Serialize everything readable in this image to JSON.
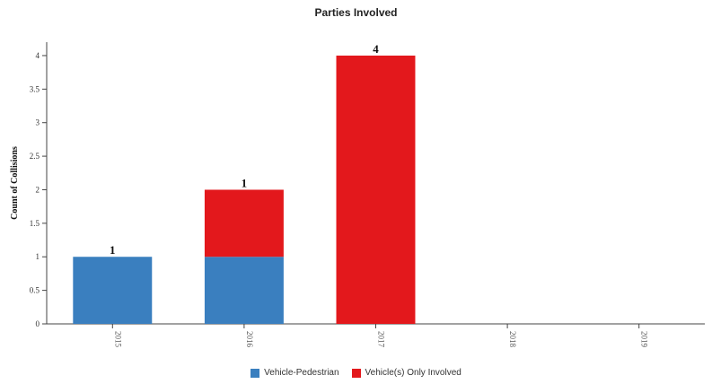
{
  "chart_data": {
    "type": "bar",
    "stacked": true,
    "title": "Parties Involved",
    "ylabel": "Count of Collisions",
    "xlabel": "",
    "ylim": [
      0,
      4.2
    ],
    "yticks": [
      "0",
      "0.5",
      "1",
      "1.5",
      "2",
      "2.5",
      "3",
      "3.5",
      "4"
    ],
    "categories": [
      "2015",
      "2016",
      "2017",
      "2018",
      "2019"
    ],
    "series": [
      {
        "name": "Vehicle-Pedestrian",
        "color": "#3a7fbf",
        "values": [
          1,
          1,
          0,
          0,
          0
        ],
        "labels": [
          "1",
          "1",
          "",
          "",
          ""
        ]
      },
      {
        "name": "Vehicle(s) Only Involved",
        "color": "#e3181c",
        "values": [
          0,
          1,
          4,
          0,
          0
        ],
        "labels": [
          "",
          "1",
          "4",
          "",
          ""
        ]
      }
    ],
    "grid": false,
    "legend": "bottom"
  }
}
